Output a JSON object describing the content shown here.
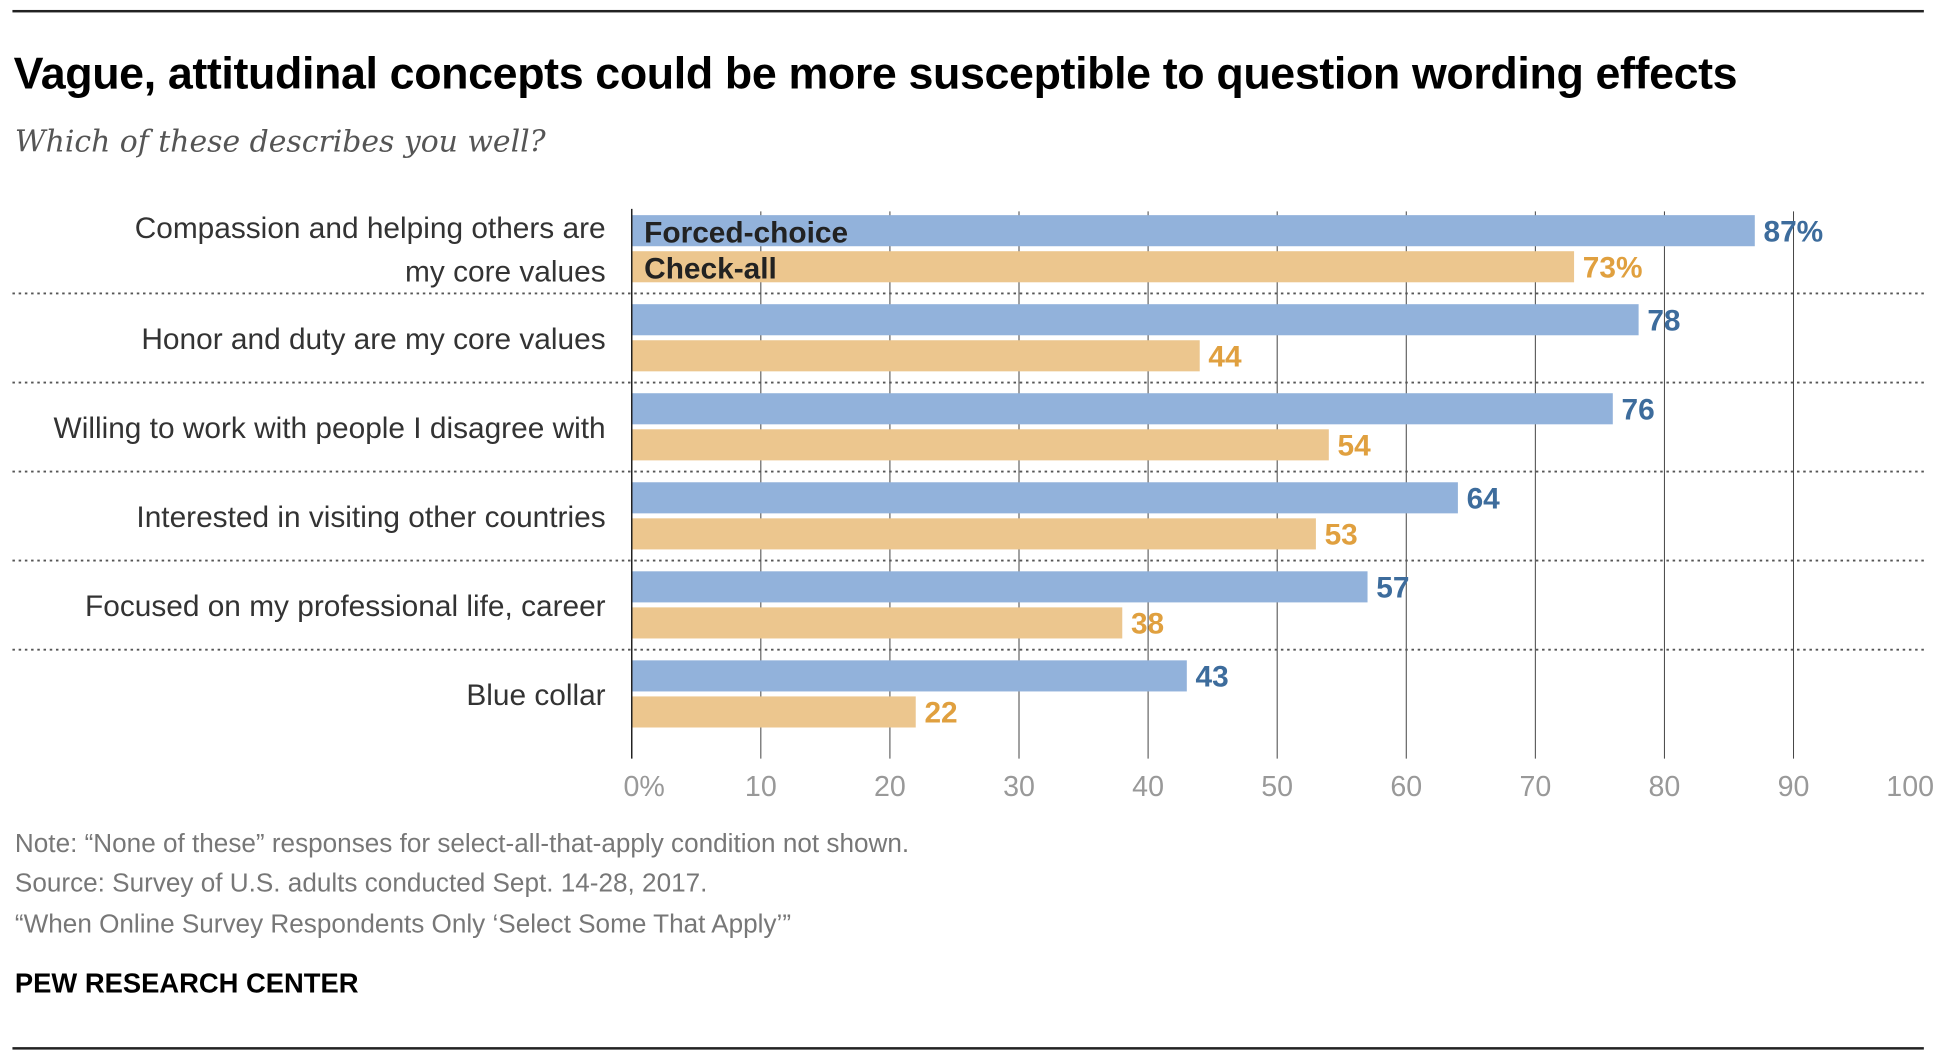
{
  "title": "Vague, attitudinal concepts could be more susceptible to question wording effects",
  "subtitle": "Which of these describes you well?",
  "notes": [
    "Note: “None of these” responses for select-all-that-apply condition not shown.",
    "Source: Survey of U.S. adults conducted Sept. 14-28, 2017.",
    "“When Online Survey Respondents Only ‘Select Some That Apply’”"
  ],
  "brand": "PEW RESEARCH CENTER",
  "chart_data": {
    "type": "bar",
    "orientation": "horizontal",
    "categories": [
      [
        "Compassion and helping others are",
        "my core values"
      ],
      [
        "Honor and duty are my core values"
      ],
      [
        "Willing to work with people I disagree with"
      ],
      [
        "Interested in visiting other countries"
      ],
      [
        "Focused on my professional life, career"
      ],
      [
        "Blue collar"
      ]
    ],
    "series": [
      {
        "name": "Forced-choice",
        "values": [
          87,
          78,
          76,
          64,
          57,
          43
        ],
        "color": "#92b2db",
        "label_color": "#3d6c9c"
      },
      {
        "name": "Check-all",
        "values": [
          73,
          44,
          54,
          53,
          38,
          22
        ],
        "color": "#ecc68e",
        "label_color": "#e0a03f"
      }
    ],
    "xlim": [
      0,
      100
    ],
    "xticks": [
      "0%",
      "10",
      "20",
      "30",
      "40",
      "50",
      "60",
      "70",
      "80",
      "90",
      "100"
    ],
    "grid": true,
    "legend": "inside-first-bars",
    "first_label_suffix": "%"
  }
}
